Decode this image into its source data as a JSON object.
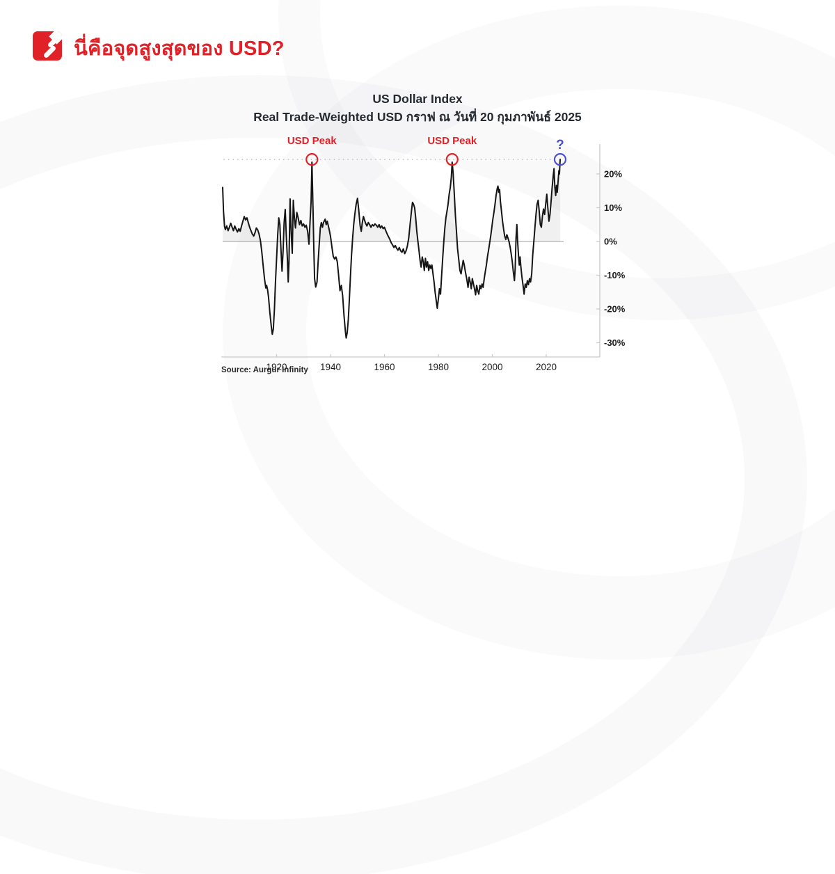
{
  "header": {
    "title": "นี่คือจุดสูงสุดของ USD?",
    "title_color": "#e02127",
    "logo_color": "#e02127"
  },
  "chart": {
    "title_line1": "US Dollar Index",
    "title_line2": "Real Trade-Weighted USD  กราฟ ณ วันที่ 20 กุมภาพันธ์ 2025",
    "source": "Source: Aurgur Infinity"
  },
  "chart_data": {
    "type": "line",
    "title": "US Dollar Index",
    "subtitle": "Real Trade-Weighted USD  กราฟ ณ วันที่ 20 กุมภาพันธ์ 2025",
    "source": "Source: Aurgur Infinity",
    "xlabel": "",
    "ylabel": "",
    "grid": false,
    "xlim": [
      1900,
      2040
    ],
    "ylim": [
      -34,
      28
    ],
    "x_ticks": [
      1920,
      1940,
      1960,
      1980,
      2000,
      2020
    ],
    "y_ticks": [
      {
        "value": 20,
        "label": "20%"
      },
      {
        "value": 10,
        "label": "10%"
      },
      {
        "value": 0,
        "label": "0%"
      },
      {
        "value": -10,
        "label": "-10%"
      },
      {
        "value": -20,
        "label": "-20%"
      },
      {
        "value": -30,
        "label": "-30%"
      }
    ],
    "peak_line_value": 24.3,
    "colors": {
      "line": "#151515",
      "area_fill": "rgba(0,0,0,0.06)",
      "axis": "#c9c9c9",
      "zero_line": "#9c9c9c",
      "dotted_line": "#b8b8b8",
      "tick_label": "#1b1b1b",
      "peak_red": "#e02127",
      "question_blue": "#4b50d2"
    },
    "annotations": [
      {
        "label": "USD Peak",
        "year": 1933.1,
        "value": 24.3,
        "color": "#e02127",
        "kind": "peak"
      },
      {
        "label": "USD Peak",
        "year": 1985.1,
        "value": 24.3,
        "color": "#e02127",
        "kind": "peak"
      },
      {
        "label": "?",
        "year": 2025.15,
        "value": 24.3,
        "color": "#4b50d2",
        "kind": "question"
      }
    ],
    "series": [
      {
        "name": "Real Trade-Weighted USD",
        "color": "#151515",
        "points": [
          [
            1900,
            16
          ],
          [
            1900.3,
            9
          ],
          [
            1900.7,
            4.5
          ],
          [
            1901,
            3.5
          ],
          [
            1901.5,
            4.6
          ],
          [
            1902,
            3.2
          ],
          [
            1902.5,
            4.2
          ],
          [
            1903,
            5.4
          ],
          [
            1903.5,
            4.2
          ],
          [
            1904,
            3.2
          ],
          [
            1904.5,
            4.6
          ],
          [
            1905,
            3.6
          ],
          [
            1905.5,
            2.8
          ],
          [
            1906,
            3.8
          ],
          [
            1906.5,
            3
          ],
          [
            1907,
            4.6
          ],
          [
            1907.5,
            6
          ],
          [
            1908,
            7.4
          ],
          [
            1908.5,
            6.4
          ],
          [
            1909,
            7
          ],
          [
            1909.5,
            5.6
          ],
          [
            1910,
            4.2
          ],
          [
            1910.5,
            3.2
          ],
          [
            1911,
            2.2
          ],
          [
            1911.5,
            1.6
          ],
          [
            1912,
            2.6
          ],
          [
            1912.5,
            4
          ],
          [
            1913,
            3.4
          ],
          [
            1913.5,
            2.2
          ],
          [
            1914,
            0.2
          ],
          [
            1914.5,
            -3
          ],
          [
            1915,
            -7
          ],
          [
            1915.5,
            -11
          ],
          [
            1916,
            -13.8
          ],
          [
            1916.3,
            -13
          ],
          [
            1916.7,
            -14.5
          ],
          [
            1917,
            -16.5
          ],
          [
            1917.5,
            -21
          ],
          [
            1918,
            -25
          ],
          [
            1918.4,
            -27.5
          ],
          [
            1918.8,
            -26
          ],
          [
            1919.2,
            -20
          ],
          [
            1919.6,
            -12
          ],
          [
            1920,
            -5
          ],
          [
            1920.4,
            2
          ],
          [
            1920.8,
            7
          ],
          [
            1921.2,
            5
          ],
          [
            1921.6,
            -2
          ],
          [
            1922,
            -8.8
          ],
          [
            1922.4,
            -3
          ],
          [
            1922.8,
            5.5
          ],
          [
            1923.2,
            9.5
          ],
          [
            1923.6,
            2
          ],
          [
            1924,
            -5
          ],
          [
            1924.3,
            -12
          ],
          [
            1924.6,
            -6
          ],
          [
            1925,
            12.6
          ],
          [
            1925.4,
            3
          ],
          [
            1925.8,
            -3.5
          ],
          [
            1926.2,
            12.2
          ],
          [
            1926.6,
            7
          ],
          [
            1927,
            4
          ],
          [
            1927.5,
            8.6
          ],
          [
            1928,
            7
          ],
          [
            1928.5,
            5
          ],
          [
            1929,
            6.2
          ],
          [
            1929.5,
            4.6
          ],
          [
            1930,
            5.2
          ],
          [
            1930.5,
            4.2
          ],
          [
            1931,
            4.8
          ],
          [
            1931.5,
            3
          ],
          [
            1932,
            -0.8
          ],
          [
            1932.4,
            6
          ],
          [
            1932.8,
            12
          ],
          [
            1933.1,
            23.5
          ],
          [
            1933.5,
            10
          ],
          [
            1933.8,
            -2
          ],
          [
            1934.1,
            -11
          ],
          [
            1934.5,
            -13.5
          ],
          [
            1935,
            -12
          ],
          [
            1935.4,
            -6
          ],
          [
            1935.8,
            -1
          ],
          [
            1936.2,
            4
          ],
          [
            1936.6,
            5.6
          ],
          [
            1937,
            4.2
          ],
          [
            1937.4,
            5.6
          ],
          [
            1938,
            6.6
          ],
          [
            1938.4,
            5
          ],
          [
            1938.8,
            6
          ],
          [
            1939.2,
            4.6
          ],
          [
            1939.6,
            3.2
          ],
          [
            1940,
            1.5
          ],
          [
            1940.5,
            -1.5
          ],
          [
            1941,
            -4.4
          ],
          [
            1941.5,
            -5.2
          ],
          [
            1942,
            -4.6
          ],
          [
            1942.5,
            -6
          ],
          [
            1943,
            -10
          ],
          [
            1943.5,
            -14.6
          ],
          [
            1944,
            -13
          ],
          [
            1944.5,
            -16
          ],
          [
            1945,
            -22
          ],
          [
            1945.5,
            -26.5
          ],
          [
            1945.8,
            -28.6
          ],
          [
            1946.2,
            -27
          ],
          [
            1946.6,
            -23
          ],
          [
            1947,
            -17
          ],
          [
            1947.4,
            -10
          ],
          [
            1947.8,
            -4
          ],
          [
            1948.2,
            1
          ],
          [
            1948.6,
            5
          ],
          [
            1949,
            8
          ],
          [
            1949.5,
            11
          ],
          [
            1950,
            12.8
          ],
          [
            1950.5,
            9
          ],
          [
            1951,
            4.6
          ],
          [
            1951.4,
            3
          ],
          [
            1951.8,
            5.6
          ],
          [
            1952.2,
            7.4
          ],
          [
            1952.6,
            6.4
          ],
          [
            1953,
            5.4
          ],
          [
            1953.5,
            4.6
          ],
          [
            1954,
            5.6
          ],
          [
            1954.5,
            5
          ],
          [
            1955,
            4.2
          ],
          [
            1955.5,
            5
          ],
          [
            1956,
            4.6
          ],
          [
            1956.5,
            5.2
          ],
          [
            1957,
            4.8
          ],
          [
            1957.5,
            4.2
          ],
          [
            1958,
            5
          ],
          [
            1958.5,
            4
          ],
          [
            1959,
            4.6
          ],
          [
            1959.5,
            3.8
          ],
          [
            1960,
            4.2
          ],
          [
            1960.5,
            3.2
          ],
          [
            1961,
            2.2
          ],
          [
            1961.5,
            1.4
          ],
          [
            1962,
            0.6
          ],
          [
            1962.5,
            -0.4
          ],
          [
            1963,
            -1
          ],
          [
            1963.5,
            -1.8
          ],
          [
            1964,
            -1.2
          ],
          [
            1964.5,
            -2
          ],
          [
            1965,
            -2.6
          ],
          [
            1965.5,
            -1.8
          ],
          [
            1966,
            -2.8
          ],
          [
            1966.5,
            -3.2
          ],
          [
            1967,
            -2.2
          ],
          [
            1967.5,
            -3.6
          ],
          [
            1968,
            -2.8
          ],
          [
            1968.5,
            -1.4
          ],
          [
            1969,
            1
          ],
          [
            1969.5,
            5
          ],
          [
            1970,
            9
          ],
          [
            1970.4,
            11.6
          ],
          [
            1970.8,
            11
          ],
          [
            1971.2,
            10
          ],
          [
            1971.6,
            7
          ],
          [
            1972,
            3
          ],
          [
            1972.4,
            0
          ],
          [
            1972.8,
            -2.6
          ],
          [
            1973.2,
            -5.6
          ],
          [
            1973.6,
            -7.6
          ],
          [
            1974,
            -4.6
          ],
          [
            1974.4,
            -6
          ],
          [
            1974.8,
            -8.6
          ],
          [
            1975.2,
            -5
          ],
          [
            1975.6,
            -7.6
          ],
          [
            1976,
            -6
          ],
          [
            1976.4,
            -8.6
          ],
          [
            1976.8,
            -7
          ],
          [
            1977.2,
            -8
          ],
          [
            1977.6,
            -7
          ],
          [
            1978,
            -9.6
          ],
          [
            1978.4,
            -12
          ],
          [
            1978.8,
            -15
          ],
          [
            1979.2,
            -17.5
          ],
          [
            1979.6,
            -19.8
          ],
          [
            1980,
            -17
          ],
          [
            1980.4,
            -14
          ],
          [
            1980.8,
            -15.6
          ],
          [
            1981.2,
            -10
          ],
          [
            1981.6,
            -5
          ],
          [
            1982,
            0
          ],
          [
            1982.4,
            4
          ],
          [
            1982.8,
            7
          ],
          [
            1983.2,
            9
          ],
          [
            1983.6,
            11
          ],
          [
            1984,
            14
          ],
          [
            1984.4,
            16
          ],
          [
            1984.8,
            19
          ],
          [
            1985.1,
            23.5
          ],
          [
            1985.5,
            20
          ],
          [
            1985.9,
            14
          ],
          [
            1986.3,
            8
          ],
          [
            1986.7,
            3
          ],
          [
            1987.1,
            -2
          ],
          [
            1987.5,
            -5
          ],
          [
            1988,
            -8.6
          ],
          [
            1988.4,
            -9.6
          ],
          [
            1988.8,
            -7.6
          ],
          [
            1989.2,
            -5.6
          ],
          [
            1989.6,
            -7
          ],
          [
            1990,
            -9
          ],
          [
            1990.5,
            -11
          ],
          [
            1991,
            -13.6
          ],
          [
            1991.4,
            -10.6
          ],
          [
            1991.8,
            -12
          ],
          [
            1992.2,
            -14
          ],
          [
            1992.6,
            -11
          ],
          [
            1993,
            -12.6
          ],
          [
            1993.4,
            -14
          ],
          [
            1993.8,
            -15.8
          ],
          [
            1994.2,
            -13
          ],
          [
            1994.6,
            -14.6
          ],
          [
            1995,
            -15.6
          ],
          [
            1995.4,
            -13
          ],
          [
            1995.8,
            -14
          ],
          [
            1996.2,
            -12.6
          ],
          [
            1996.6,
            -13.6
          ],
          [
            1997,
            -11
          ],
          [
            1997.4,
            -9
          ],
          [
            1997.8,
            -7
          ],
          [
            1998.2,
            -4.6
          ],
          [
            1998.6,
            -2.6
          ],
          [
            1999,
            -0.6
          ],
          [
            1999.4,
            1.6
          ],
          [
            1999.8,
            4
          ],
          [
            2000.2,
            6.6
          ],
          [
            2000.6,
            8.6
          ],
          [
            2001,
            11
          ],
          [
            2001.4,
            13.6
          ],
          [
            2001.8,
            15.6
          ],
          [
            2002.1,
            16.4
          ],
          [
            2002.4,
            14.6
          ],
          [
            2002.7,
            15.4
          ],
          [
            2003,
            12
          ],
          [
            2003.4,
            9
          ],
          [
            2003.8,
            6
          ],
          [
            2004.2,
            3.6
          ],
          [
            2004.6,
            1.6
          ],
          [
            2005,
            0.6
          ],
          [
            2005.4,
            2
          ],
          [
            2005.8,
            1
          ],
          [
            2006.2,
            0
          ],
          [
            2006.6,
            -1.6
          ],
          [
            2007,
            -3.6
          ],
          [
            2007.4,
            -6
          ],
          [
            2007.8,
            -9
          ],
          [
            2008.2,
            -11.6
          ],
          [
            2008.5,
            -8
          ],
          [
            2008.8,
            1
          ],
          [
            2009.1,
            5
          ],
          [
            2009.4,
            0
          ],
          [
            2009.7,
            -4
          ],
          [
            2010,
            -7
          ],
          [
            2010.3,
            -4.6
          ],
          [
            2010.6,
            -7.6
          ],
          [
            2011,
            -10.6
          ],
          [
            2011.4,
            -13
          ],
          [
            2011.8,
            -15.6
          ],
          [
            2012.2,
            -12.6
          ],
          [
            2012.6,
            -13.6
          ],
          [
            2013,
            -11.6
          ],
          [
            2013.4,
            -12.8
          ],
          [
            2013.8,
            -11
          ],
          [
            2014.2,
            -12
          ],
          [
            2014.6,
            -9.6
          ],
          [
            2015,
            -4
          ],
          [
            2015.4,
            0
          ],
          [
            2015.8,
            4
          ],
          [
            2016.2,
            8
          ],
          [
            2016.6,
            11
          ],
          [
            2017,
            12.2
          ],
          [
            2017.4,
            9
          ],
          [
            2017.8,
            5
          ],
          [
            2018.2,
            4.2
          ],
          [
            2018.6,
            7.6
          ],
          [
            2019,
            9.6
          ],
          [
            2019.4,
            8
          ],
          [
            2019.8,
            11
          ],
          [
            2020.2,
            14
          ],
          [
            2020.6,
            10
          ],
          [
            2021,
            6
          ],
          [
            2021.4,
            8
          ],
          [
            2021.8,
            12
          ],
          [
            2022.2,
            16
          ],
          [
            2022.6,
            19.6
          ],
          [
            2022.9,
            21.6
          ],
          [
            2023.2,
            16
          ],
          [
            2023.5,
            13.6
          ],
          [
            2023.8,
            16.6
          ],
          [
            2024.1,
            14.6
          ],
          [
            2024.4,
            18
          ],
          [
            2024.7,
            21
          ],
          [
            2024.9,
            20
          ],
          [
            2025.15,
            24.3
          ]
        ]
      }
    ]
  }
}
